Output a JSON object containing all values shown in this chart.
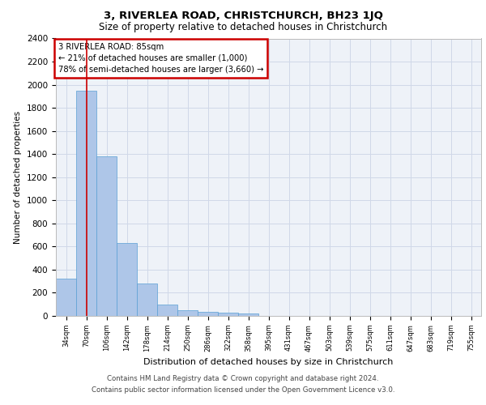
{
  "title": "3, RIVERLEA ROAD, CHRISTCHURCH, BH23 1JQ",
  "subtitle": "Size of property relative to detached houses in Christchurch",
  "xlabel": "Distribution of detached houses by size in Christchurch",
  "ylabel": "Number of detached properties",
  "categories": [
    "34sqm",
    "70sqm",
    "106sqm",
    "142sqm",
    "178sqm",
    "214sqm",
    "250sqm",
    "286sqm",
    "322sqm",
    "358sqm",
    "395sqm",
    "431sqm",
    "467sqm",
    "503sqm",
    "539sqm",
    "575sqm",
    "611sqm",
    "647sqm",
    "683sqm",
    "719sqm",
    "755sqm"
  ],
  "values": [
    320,
    1950,
    1380,
    630,
    280,
    100,
    47,
    35,
    28,
    18,
    0,
    0,
    0,
    0,
    0,
    0,
    0,
    0,
    0,
    0,
    0
  ],
  "bar_color": "#aec6e8",
  "bar_edge_color": "#5a9fd4",
  "grid_color": "#d0d8e8",
  "background_color": "#eef2f8",
  "annotation_box_text": "3 RIVERLEA ROAD: 85sqm\n← 21% of detached houses are smaller (1,000)\n78% of semi-detached houses are larger (3,660) →",
  "annotation_box_color": "#cc0000",
  "property_line_x": 1,
  "ylim": [
    0,
    2400
  ],
  "yticks": [
    0,
    200,
    400,
    600,
    800,
    1000,
    1200,
    1400,
    1600,
    1800,
    2000,
    2200,
    2400
  ],
  "footer_line1": "Contains HM Land Registry data © Crown copyright and database right 2024.",
  "footer_line2": "Contains public sector information licensed under the Open Government Licence v3.0."
}
